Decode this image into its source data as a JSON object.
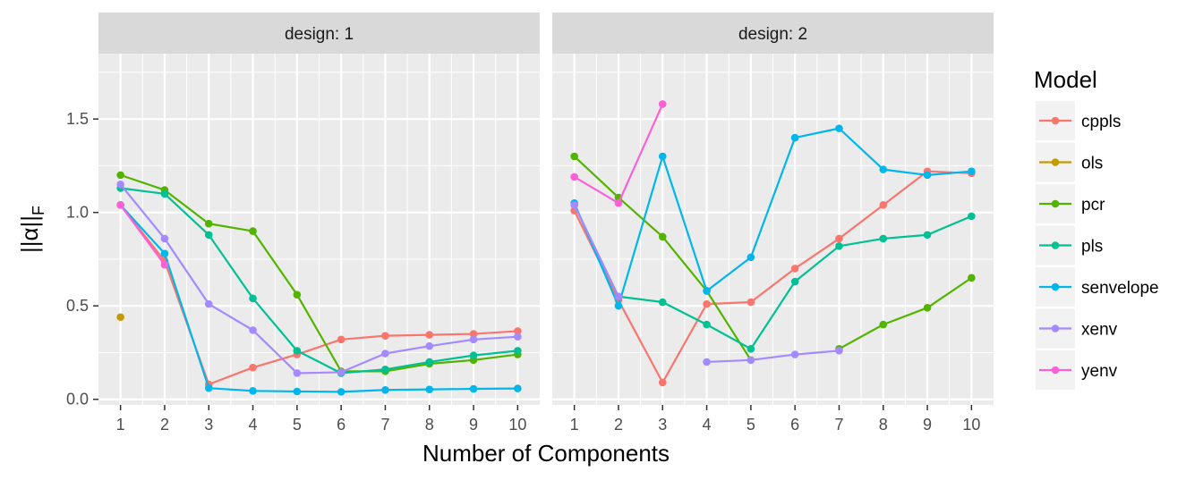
{
  "chart_data": {
    "type": "line",
    "xlabel": "Number of Components",
    "ylabel_main": "||α||",
    "ylabel_sub": "F",
    "ylim": [
      -0.03,
      1.85
    ],
    "xlim": [
      0.5,
      10.5
    ],
    "x": [
      1,
      2,
      3,
      4,
      5,
      6,
      7,
      8,
      9,
      10
    ],
    "yticks": [
      0.0,
      0.5,
      1.0,
      1.5
    ],
    "ytick_labels": [
      "0.0",
      "0.5",
      "1.0",
      "1.5"
    ],
    "xtick_labels": [
      "1",
      "2",
      "3",
      "4",
      "5",
      "6",
      "7",
      "8",
      "9",
      "10"
    ],
    "legend_title": "Model",
    "legend_position": "right",
    "grid": true,
    "series_colors": {
      "cppls": "#F8766D",
      "ols": "#C49A00",
      "pcr": "#53B400",
      "pls": "#00C094",
      "senvelope": "#00B6EB",
      "xenv": "#A58AFF",
      "yenv": "#FB61D7"
    },
    "panels": [
      {
        "strip": "design: 1",
        "series": [
          {
            "name": "cppls",
            "values": [
              1.04,
              0.74,
              0.08,
              0.17,
              0.24,
              0.32,
              0.34,
              0.345,
              0.35,
              0.365
            ]
          },
          {
            "name": "ols",
            "values": [
              0.44,
              null,
              null,
              null,
              null,
              null,
              null,
              null,
              null,
              null
            ]
          },
          {
            "name": "pcr",
            "values": [
              1.2,
              1.12,
              0.94,
              0.9,
              0.56,
              0.15,
              0.15,
              0.19,
              0.21,
              0.24
            ]
          },
          {
            "name": "pls",
            "values": [
              1.13,
              1.1,
              0.88,
              0.54,
              0.26,
              0.14,
              0.16,
              0.2,
              0.235,
              0.26
            ]
          },
          {
            "name": "senvelope",
            "values": [
              1.04,
              0.78,
              0.06,
              0.045,
              0.042,
              0.04,
              0.05,
              0.053,
              0.056,
              0.058
            ]
          },
          {
            "name": "xenv",
            "values": [
              1.15,
              0.86,
              0.51,
              0.37,
              0.14,
              0.145,
              0.245,
              0.285,
              0.32,
              0.335
            ]
          },
          {
            "name": "yenv",
            "values": [
              1.04,
              0.72,
              null,
              null,
              null,
              null,
              null,
              null,
              null,
              null
            ]
          }
        ]
      },
      {
        "strip": "design: 2",
        "series": [
          {
            "name": "cppls",
            "values": [
              1.01,
              0.53,
              0.09,
              0.51,
              0.52,
              0.7,
              0.86,
              1.04,
              1.22,
              1.21
            ]
          },
          {
            "name": "pcr",
            "values": [
              1.3,
              1.08,
              0.87,
              0.58,
              0.21,
              null,
              0.27,
              0.4,
              0.49,
              0.65
            ]
          },
          {
            "name": "pls",
            "values": [
              1.04,
              0.55,
              0.52,
              0.4,
              0.27,
              0.63,
              0.82,
              0.86,
              0.88,
              0.98
            ]
          },
          {
            "name": "senvelope",
            "values": [
              1.05,
              0.5,
              1.3,
              0.58,
              0.76,
              1.4,
              1.45,
              1.23,
              1.2,
              1.22
            ]
          },
          {
            "name": "xenv",
            "values": [
              1.04,
              0.55,
              null,
              0.2,
              0.21,
              0.24,
              0.26,
              null,
              null,
              null
            ]
          },
          {
            "name": "yenv",
            "values": [
              1.19,
              1.05,
              1.58,
              null,
              null,
              null,
              null,
              null,
              null,
              null
            ]
          }
        ]
      }
    ]
  }
}
